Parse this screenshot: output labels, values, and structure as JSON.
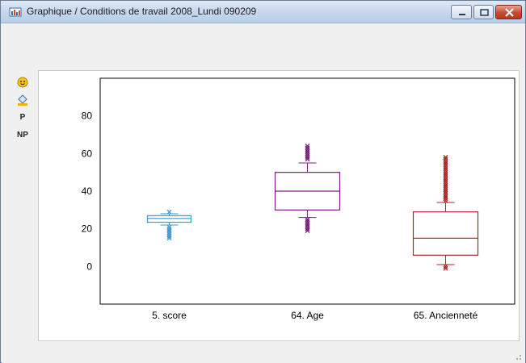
{
  "window": {
    "title": "Graphique / Conditions de travail 2008_Lundi 090209"
  },
  "side_tools": [
    {
      "name": "smiley-tool",
      "label": ""
    },
    {
      "name": "paint-tool",
      "label": ""
    },
    {
      "name": "p-tool",
      "label": "P"
    },
    {
      "name": "np-tool",
      "label": "NP"
    }
  ],
  "colors": {
    "score": "#3a9bd0",
    "age": "#7a1f7a",
    "anciennete": "#b0252a"
  },
  "chart_data": {
    "type": "boxplot",
    "title": "",
    "xlabel": "",
    "ylabel": "",
    "ylim": [
      -20,
      100
    ],
    "yticks": [
      0,
      20,
      40,
      60,
      80
    ],
    "categories": [
      "5. score",
      "64. Age",
      "65. Ancienneté"
    ],
    "series": [
      {
        "name": "5. score",
        "min": 22,
        "q1": 23.5,
        "median": 25.5,
        "q3": 27,
        "max": 28,
        "outliers": [
          29,
          21,
          20,
          19,
          18,
          17,
          16,
          15
        ]
      },
      {
        "name": "64. Age",
        "min": 26,
        "q1": 30,
        "median": 40,
        "q3": 50,
        "max": 55,
        "outliers": [
          57,
          58,
          59,
          60,
          61,
          62,
          63,
          64,
          25,
          24,
          23,
          22,
          21,
          20,
          19
        ]
      },
      {
        "name": "65. Ancienneté",
        "min": 1,
        "q1": 6,
        "median": 15,
        "q3": 29,
        "max": 34,
        "outliers": [
          35,
          36,
          37,
          38,
          39,
          40,
          41,
          42,
          43,
          44,
          45,
          46,
          47,
          48,
          49,
          50,
          51,
          52,
          53,
          54,
          55,
          56,
          57,
          58,
          0,
          -1
        ]
      }
    ]
  }
}
